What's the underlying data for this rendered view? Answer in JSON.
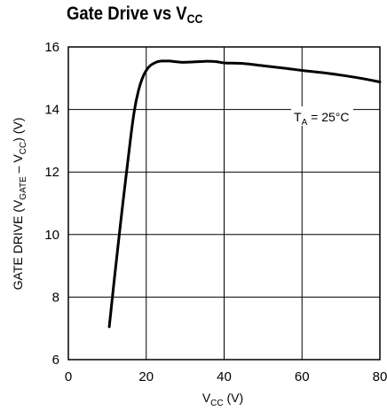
{
  "chart_data": {
    "type": "line",
    "title": "Gate Drive vs V",
    "title_sub": "CC",
    "xlabel": {
      "main": "V",
      "sub": "CC",
      "tail": " (V)"
    },
    "ylabel": {
      "p1": "GATE DRIVE (V",
      "s1": "GATE",
      "p2": " – V",
      "s2": "CC",
      "p3": ") (V)"
    },
    "xlim": [
      0,
      80
    ],
    "ylim": [
      6,
      16
    ],
    "xticks": [
      0,
      20,
      40,
      60,
      80
    ],
    "xtick_labels": [
      "0",
      "20",
      "40",
      "60",
      "80"
    ],
    "yticks": [
      6,
      8,
      10,
      12,
      14,
      16
    ],
    "ytick_labels": [
      "6",
      "8",
      "10",
      "12",
      "14",
      "16"
    ],
    "grid": true,
    "annotation": {
      "main": "T",
      "sub": "A",
      "tail": " = 25°C"
    },
    "series": [
      {
        "x": [
          10.5,
          12,
          14,
          16,
          17,
          18,
          19,
          20,
          21,
          22,
          23,
          24,
          25,
          26,
          28,
          30,
          35,
          38,
          40,
          45,
          50,
          55,
          60,
          65,
          70,
          75,
          80
        ],
        "y": [
          7.05,
          8.8,
          11.0,
          13.1,
          14.0,
          14.6,
          15.0,
          15.25,
          15.4,
          15.48,
          15.53,
          15.55,
          15.55,
          15.55,
          15.52,
          15.51,
          15.54,
          15.53,
          15.49,
          15.47,
          15.4,
          15.33,
          15.25,
          15.18,
          15.1,
          15.0,
          14.88
        ]
      }
    ]
  }
}
